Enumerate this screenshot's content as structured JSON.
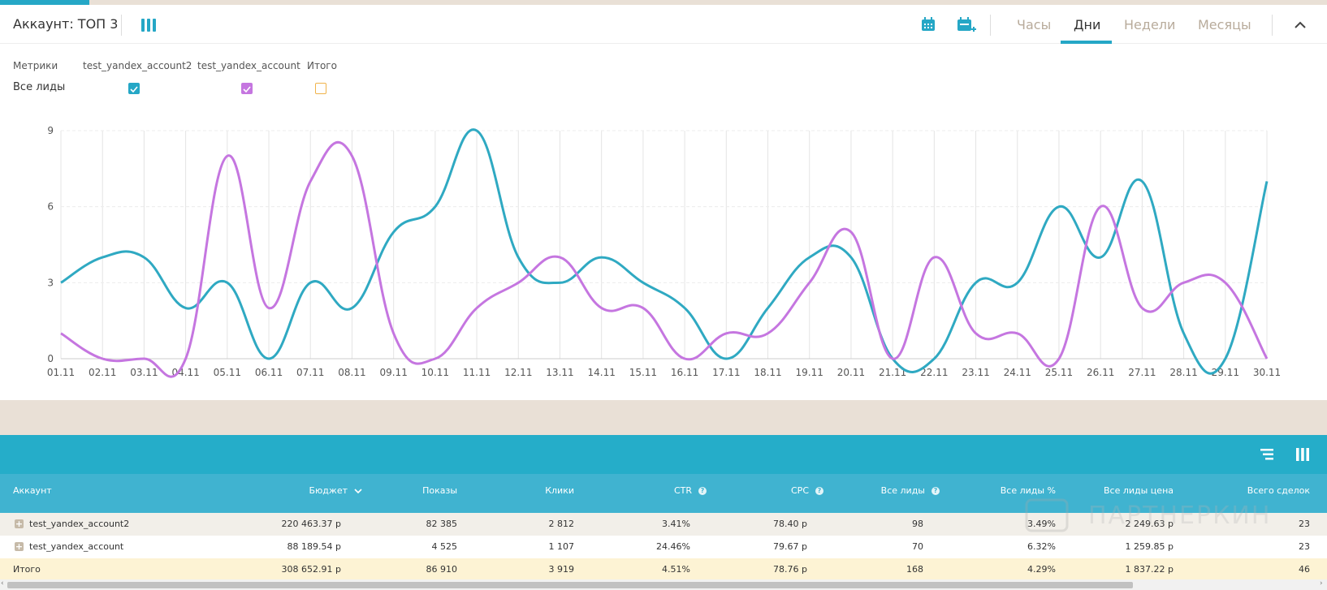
{
  "header": {
    "title": "Аккаунт: ТОП 3",
    "tabs": [
      {
        "label": "Часы",
        "active": false
      },
      {
        "label": "Дни",
        "active": true
      },
      {
        "label": "Недели",
        "active": false
      },
      {
        "label": "Месяцы",
        "active": false
      }
    ]
  },
  "legend": {
    "metrics_label": "Метрики",
    "columns": [
      "test_yandex_account2",
      "test_yandex_account",
      "Итого"
    ],
    "row_label": "Все лиды",
    "checkboxes": [
      {
        "checked": true,
        "color": "#25a7c6"
      },
      {
        "checked": true,
        "color": "#c576e0"
      },
      {
        "checked": false,
        "color": "#f0b34a"
      }
    ]
  },
  "chart_data": {
    "type": "line",
    "categories": [
      "01.11",
      "02.11",
      "03.11",
      "04.11",
      "05.11",
      "06.11",
      "07.11",
      "08.11",
      "09.11",
      "10.11",
      "11.11",
      "12.11",
      "13.11",
      "14.11",
      "15.11",
      "16.11",
      "17.11",
      "18.11",
      "19.11",
      "20.11",
      "21.11",
      "22.11",
      "23.11",
      "24.11",
      "25.11",
      "26.11",
      "27.11",
      "28.11",
      "29.11",
      "30.11"
    ],
    "ylim": [
      0,
      9
    ],
    "yticks": [
      0,
      3,
      6,
      9
    ],
    "grid": true,
    "series": [
      {
        "name": "test_yandex_account2",
        "color": "#2fa9c2",
        "values": [
          3,
          4,
          4,
          2,
          3,
          0,
          3,
          2,
          5,
          6,
          9,
          4,
          3,
          4,
          3,
          2,
          0,
          2,
          4,
          4,
          0,
          0,
          3,
          3,
          6,
          4,
          7,
          1,
          0,
          7
        ]
      },
      {
        "name": "test_yandex_account",
        "color": "#c576e0",
        "values": [
          1,
          0,
          0,
          0,
          8,
          2,
          7,
          8,
          1,
          0,
          2,
          3,
          4,
          2,
          2,
          0,
          1,
          1,
          3,
          5,
          0,
          4,
          1,
          1,
          0,
          6,
          2,
          3,
          3,
          0
        ]
      }
    ]
  },
  "table": {
    "columns": [
      {
        "label": "Аккаунт",
        "help": false,
        "sort": false
      },
      {
        "label": "Бюджет",
        "help": false,
        "sort": true
      },
      {
        "label": "Показы",
        "help": false,
        "sort": false
      },
      {
        "label": "Клики",
        "help": false,
        "sort": false
      },
      {
        "label": "CTR",
        "help": true,
        "sort": false
      },
      {
        "label": "CPC",
        "help": true,
        "sort": false
      },
      {
        "label": "Все лиды",
        "help": true,
        "sort": false
      },
      {
        "label": "Все лиды %",
        "help": false,
        "sort": false
      },
      {
        "label": "Все лиды цена",
        "help": false,
        "sort": false
      },
      {
        "label": "Всего сделок",
        "help": false,
        "sort": false
      }
    ],
    "rows": [
      {
        "expandable": true,
        "cells": [
          "test_yandex_account2",
          "220 463.37 р",
          "82 385",
          "2 812",
          "3.41%",
          "78.40 р",
          "98",
          "3.49%",
          "2 249.63 р",
          "23"
        ]
      },
      {
        "expandable": true,
        "cells": [
          "test_yandex_account",
          "88 189.54 р",
          "4 525",
          "1 107",
          "24.46%",
          "79.67 р",
          "70",
          "6.32%",
          "1 259.85 р",
          "23"
        ]
      },
      {
        "expandable": false,
        "cells": [
          "Итого",
          "308 652.91 р",
          "86 910",
          "3 919",
          "4.51%",
          "78.76 р",
          "168",
          "4.29%",
          "1 837.22 р",
          "46"
        ]
      }
    ]
  },
  "watermark": "ПАРТНЕРКИН",
  "progress_fraction": 0.067
}
